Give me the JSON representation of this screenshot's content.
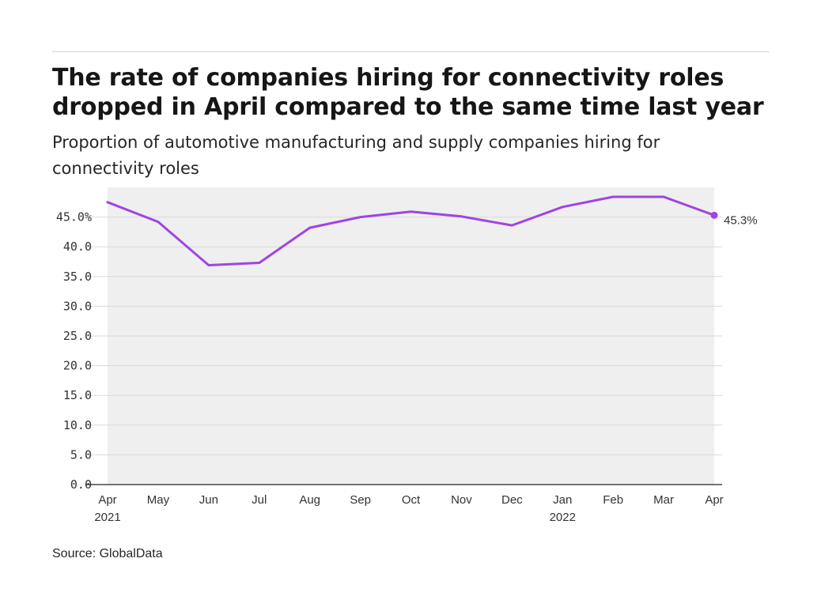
{
  "header": {
    "title": "The rate of companies hiring for connectivity roles dropped in April compared to the same time last year",
    "subtitle": "Proportion of automotive manufacturing and supply companies hiring for connectivity roles"
  },
  "footer": {
    "source": "Source: GlobalData"
  },
  "chart_data": {
    "type": "area",
    "title": "The rate of companies hiring for connectivity roles dropped in April compared to the same time last year",
    "subtitle": "Proportion of automotive manufacturing and supply companies hiring for connectivity roles",
    "xlabel": "",
    "ylabel": "",
    "categories": [
      "Apr 2021",
      "May",
      "Jun",
      "Jul",
      "Aug",
      "Sep",
      "Oct",
      "Nov",
      "Dec",
      "Jan 2022",
      "Feb",
      "Mar",
      "Apr"
    ],
    "x_tick_labels": [
      {
        "month": "Apr",
        "year": "2021"
      },
      {
        "month": "May",
        "year": ""
      },
      {
        "month": "Jun",
        "year": ""
      },
      {
        "month": "Jul",
        "year": ""
      },
      {
        "month": "Aug",
        "year": ""
      },
      {
        "month": "Sep",
        "year": ""
      },
      {
        "month": "Oct",
        "year": ""
      },
      {
        "month": "Nov",
        "year": ""
      },
      {
        "month": "Dec",
        "year": ""
      },
      {
        "month": "Jan",
        "year": "2022"
      },
      {
        "month": "Feb",
        "year": ""
      },
      {
        "month": "Mar",
        "year": ""
      },
      {
        "month": "Apr",
        "year": ""
      }
    ],
    "series": [
      {
        "values": [
          47.5,
          44.2,
          36.9,
          37.3,
          43.2,
          45.0,
          45.9,
          45.1,
          43.6,
          46.7,
          48.4,
          48.4,
          45.3
        ]
      }
    ],
    "ylim": [
      0,
      50
    ],
    "y_ticks": [
      0,
      5,
      10,
      15,
      20,
      25,
      30,
      35,
      40,
      45
    ],
    "y_tick_labels": [
      "0.0",
      "5.0",
      "10.0",
      "15.0",
      "20.0",
      "25.0",
      "30.0",
      "35.0",
      "40.0",
      "45.0%"
    ],
    "end_label": "45.3%",
    "grid": true,
    "legend": "none",
    "colors": {
      "line": "#a044e3",
      "area": "#efefef",
      "grid": "#d9d9d9",
      "axis": "#222222"
    }
  }
}
